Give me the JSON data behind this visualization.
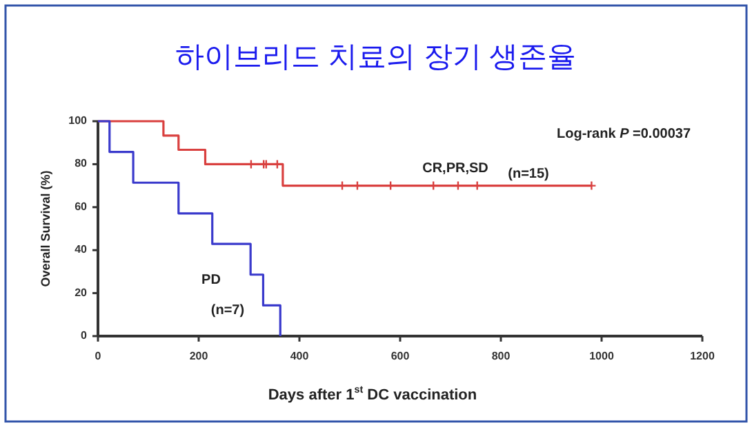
{
  "chart_data": {
    "type": "step",
    "title": "하이브리드 치료의 장기 생존율",
    "xlabel": "Days after 1$^{st}$ DC vaccination",
    "ylabel": "Overall Survival (%)",
    "xlim": [
      0,
      1200
    ],
    "xticks": [
      0,
      200,
      400,
      600,
      800,
      1000,
      1200
    ],
    "ylim": [
      0,
      100
    ],
    "yticks": [
      0,
      20,
      40,
      60,
      80,
      100
    ],
    "grid": false,
    "series": [
      {
        "color": "#d9403f",
        "x": [
          0,
          130,
          130,
          160,
          160,
          213,
          213,
          367,
          367,
          980
        ],
        "values": [
          100,
          100,
          93.3,
          93.3,
          86.7,
          86.7,
          80,
          80,
          70,
          70
        ]
      },
      {
        "color": "#3a3acc",
        "x": [
          0,
          23,
          23,
          70,
          70,
          160,
          160,
          227,
          227,
          303,
          303,
          328,
          328,
          362,
          362
        ],
        "values": [
          100,
          100,
          85.7,
          85.7,
          71.4,
          71.4,
          57.1,
          57.1,
          42.9,
          42.9,
          28.6,
          28.6,
          14.3,
          14.3,
          0
        ]
      },
      {
        "type": "scatter",
        "marker": "cross",
        "color": "#d9403f",
        "x": [
          304,
          329,
          334,
          356,
          485,
          515,
          581,
          666,
          715,
          753,
          980
        ],
        "values": [
          80,
          80,
          80,
          80,
          70,
          70,
          70,
          70,
          70,
          70,
          70
        ]
      }
    ],
    "annotations": [
      "Log-rank *P* =0.00037",
      "CR,PR,SD",
      "(n=15)",
      "PD",
      "(n=7)"
    ]
  }
}
